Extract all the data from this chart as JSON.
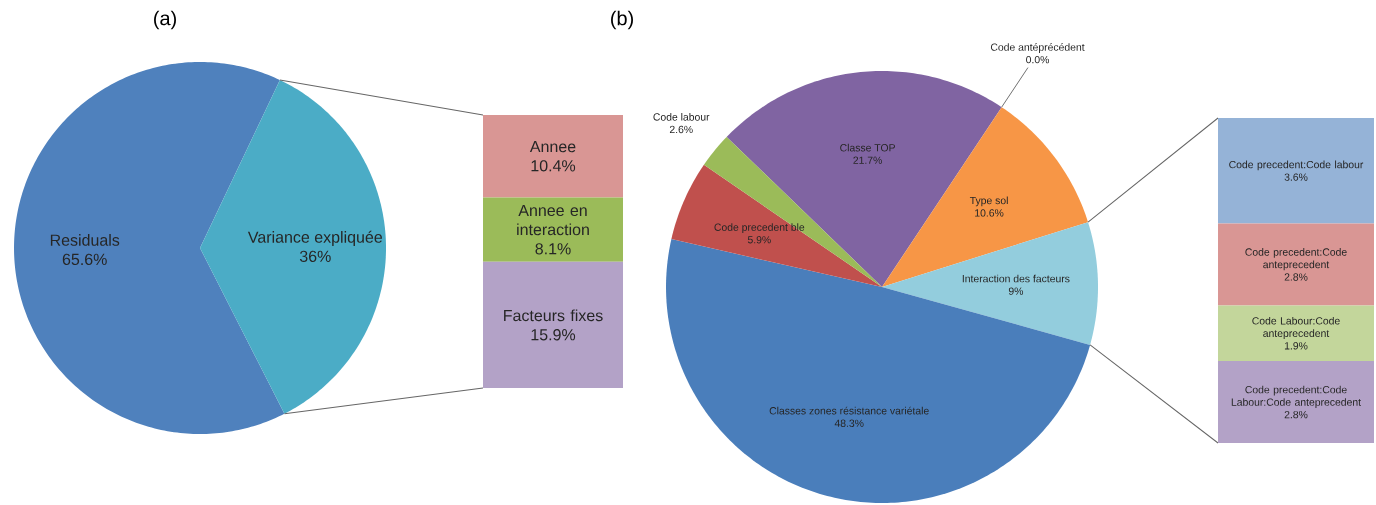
{
  "chart_data": [
    {
      "type": "pie",
      "title": "(a)",
      "categories": [
        "Residuals",
        "Variance expliquée"
      ],
      "values": [
        65.6,
        36
      ],
      "colors": [
        "#4f81bd",
        "#4bacc6"
      ],
      "value_labels": [
        "65.6%",
        "36%"
      ]
    },
    {
      "type": "bar",
      "stacked": true,
      "tick_labels": false,
      "categories": [
        null
      ],
      "series": [
        {
          "name": "Facteurs fixes",
          "color": "#b3a2c7",
          "values": [
            15.9
          ],
          "value_labels": [
            "15.9%"
          ]
        },
        {
          "name": "Annee en interaction",
          "color": "#9bbb59",
          "values": [
            8.1
          ],
          "value_labels": [
            "8.1%"
          ]
        },
        {
          "name": "Annee",
          "color": "#d99694",
          "values": [
            10.4
          ],
          "value_labels": [
            "10.4%"
          ]
        }
      ]
    },
    {
      "type": "pie",
      "title": "(b)",
      "categories": [
        "Classe TOP",
        "Code antéprécédent",
        "Type sol",
        "Interaction des facteurs",
        "Classes zones résistance variétale",
        "Code precedent ble",
        "Code labour"
      ],
      "values": [
        21.7,
        0.0,
        10.6,
        9,
        48.3,
        5.9,
        2.6
      ],
      "colors": [
        "#8064a2",
        "#f79646",
        "#f79646",
        "#93cddd",
        "#4a7ebb",
        "#c0504d",
        "#9bbb59"
      ],
      "value_labels": [
        "21.7%",
        "0.0%",
        "10.6%",
        "9%",
        "48.3%",
        "5.9%",
        "2.6%"
      ]
    },
    {
      "type": "bar",
      "stacked": true,
      "tick_labels": false,
      "categories": [
        null
      ],
      "series": [
        {
          "name": "Code precedent:Code Labour:Code anteprecedent",
          "color": "#b3a2c7",
          "values": [
            2.8
          ],
          "value_labels": [
            "2.8%"
          ]
        },
        {
          "name": "Code Labour:Code anteprecedent",
          "color": "#c3d69b",
          "values": [
            1.9
          ],
          "value_labels": [
            "1.9%"
          ]
        },
        {
          "name": "Code precedent:Code anteprecedent",
          "color": "#d99694",
          "values": [
            2.8
          ],
          "value_labels": [
            "2.8%"
          ]
        },
        {
          "name": "Code precedent:Code labour",
          "color": "#95b3d7",
          "values": [
            3.6
          ],
          "value_labels": [
            "3.6%"
          ]
        }
      ]
    }
  ]
}
